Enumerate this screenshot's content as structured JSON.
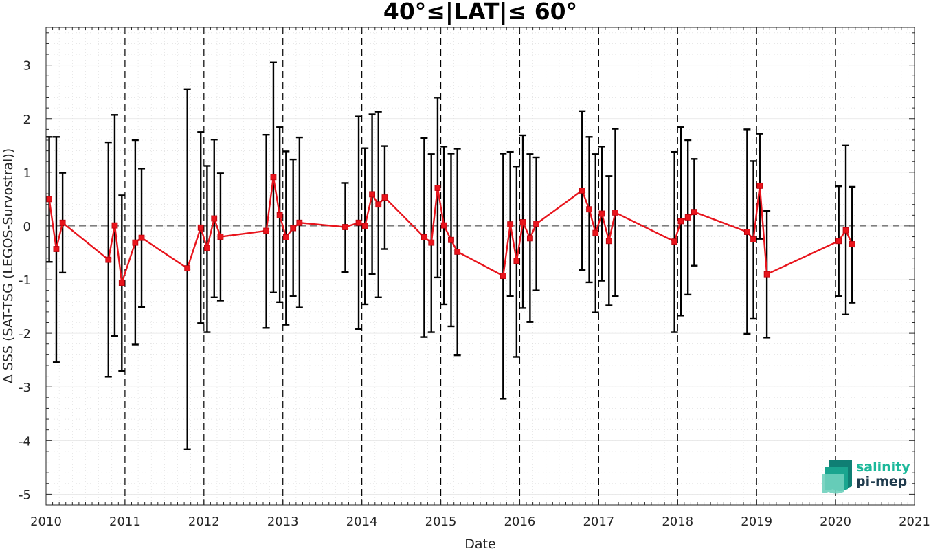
{
  "chart_data": {
    "type": "line",
    "title": "40°≤|LAT|≤ 60°",
    "xlabel": "Date",
    "ylabel": "Δ SSS (SAT-TSG (LEGOS-Survostral))",
    "xlim": [
      2010,
      2021
    ],
    "ylim": [
      -5.2,
      3.7
    ],
    "x_ticks": [
      "2010",
      "2011",
      "2012",
      "2013",
      "2014",
      "2015",
      "2016",
      "2017",
      "2018",
      "2019",
      "2020",
      "2021"
    ],
    "y_ticks": [
      "-5",
      "-4",
      "-3",
      "-2",
      "-1",
      "0",
      "1",
      "2",
      "3"
    ],
    "grid": true,
    "year_boundaries_dashed": true,
    "zero_line_dashed": true,
    "colors": {
      "series": "#e8141c",
      "errorbar": "#000000"
    },
    "series": [
      {
        "x": [
          2010.04,
          2010.13,
          2010.21,
          2010.79,
          2010.87,
          2010.96,
          2011.13,
          2011.21,
          2011.79,
          2011.96,
          2012.04,
          2012.13,
          2012.21,
          2012.79,
          2012.88,
          2012.96,
          2013.04,
          2013.13,
          2013.21,
          2013.79,
          2013.96,
          2014.04,
          2014.13,
          2014.21,
          2014.29,
          2014.79,
          2014.88,
          2014.96,
          2015.04,
          2015.13,
          2015.21,
          2015.79,
          2015.88,
          2015.96,
          2016.04,
          2016.13,
          2016.21,
          2016.79,
          2016.88,
          2016.96,
          2017.04,
          2017.13,
          2017.21,
          2017.96,
          2018.04,
          2018.13,
          2018.21,
          2018.88,
          2018.96,
          2019.04,
          2019.13,
          2020.04,
          2020.13,
          2020.21
        ],
        "values": [
          0.5,
          -0.43,
          0.06,
          -0.63,
          0.01,
          -1.06,
          -0.31,
          -0.22,
          -0.79,
          -0.03,
          -0.41,
          0.14,
          -0.2,
          -0.09,
          0.91,
          0.2,
          -0.21,
          -0.04,
          0.06,
          -0.02,
          0.06,
          0.0,
          0.59,
          0.4,
          0.53,
          -0.21,
          -0.31,
          0.71,
          0.01,
          -0.26,
          -0.48,
          -0.93,
          0.03,
          -0.65,
          0.07,
          -0.23,
          0.04,
          0.66,
          0.31,
          -0.13,
          0.23,
          -0.28,
          0.25,
          -0.29,
          0.09,
          0.16,
          0.26,
          -0.11,
          -0.25,
          0.75,
          -0.9,
          -0.28,
          -0.08,
          -0.34
        ],
        "error_low": [
          -0.67,
          -2.54,
          -0.87,
          -2.81,
          -2.05,
          -2.7,
          -2.21,
          -1.51,
          -4.16,
          -1.81,
          -1.98,
          -1.33,
          -1.39,
          -1.9,
          -1.24,
          -1.42,
          -1.84,
          -1.31,
          -1.52,
          -0.86,
          -1.92,
          -1.46,
          -0.9,
          -1.33,
          -0.43,
          -2.07,
          -1.98,
          -0.96,
          -1.46,
          -1.87,
          -2.41,
          -3.22,
          -1.31,
          -2.44,
          -1.53,
          -1.79,
          -1.2,
          -0.82,
          -1.05,
          -1.61,
          -1.02,
          -1.48,
          -1.31,
          -1.98,
          -1.67,
          -1.28,
          -0.74,
          -2.01,
          -1.73,
          -0.24,
          -2.08,
          -1.31,
          -1.65,
          -1.43
        ],
        "error_high": [
          1.66,
          1.66,
          0.99,
          1.56,
          2.07,
          0.57,
          1.6,
          1.07,
          2.55,
          1.75,
          1.12,
          1.61,
          0.98,
          1.7,
          3.05,
          1.84,
          1.39,
          1.24,
          1.65,
          0.8,
          2.04,
          1.45,
          2.08,
          2.13,
          1.49,
          1.64,
          1.34,
          2.39,
          1.48,
          1.35,
          1.44,
          1.35,
          1.38,
          1.11,
          1.69,
          1.34,
          1.28,
          2.14,
          1.66,
          1.34,
          1.48,
          0.93,
          1.81,
          1.38,
          1.84,
          1.6,
          1.25,
          1.8,
          1.21,
          1.72,
          0.28,
          0.74,
          1.5,
          0.73
        ]
      }
    ]
  },
  "logo": {
    "line1": "salinity",
    "line2": "pi-mep",
    "colors": {
      "teal": "#1bb89a",
      "dark": "#1f3b4d"
    }
  }
}
